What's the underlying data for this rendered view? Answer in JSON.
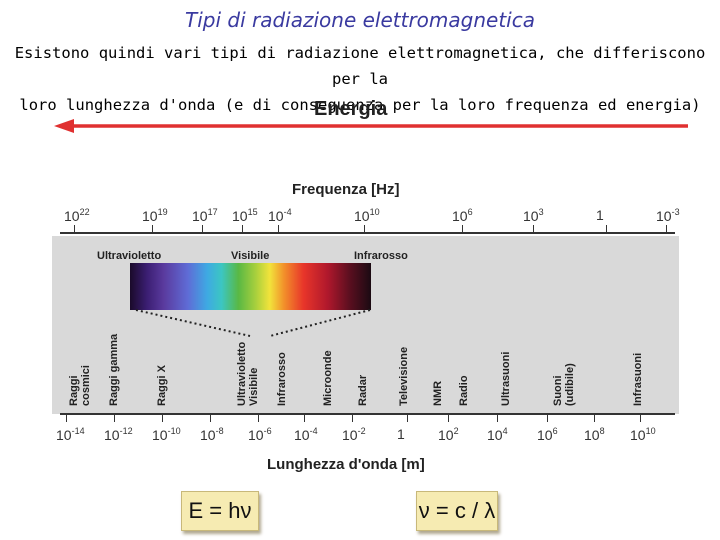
{
  "title": "Tipi di radiazione elettromagnetica",
  "subtitle_line1": "Esistono quindi vari tipi di radiazione elettromagnetica, che differiscono per la",
  "subtitle_line2": "loro lunghezza d'onda (e di conseguenza per la loro frequenza ed energia)",
  "energy_label": "Energia",
  "arrow_color": "#e03030",
  "frequency_axis": {
    "title": "Frequenza [Hz]",
    "ticks": [
      {
        "base": "10",
        "exp": "22"
      },
      {
        "base": "10",
        "exp": "19"
      },
      {
        "base": "10",
        "exp": "17"
      },
      {
        "base": "10",
        "exp": "15"
      },
      {
        "base": "10",
        "exp": "-4"
      },
      {
        "base": "10",
        "exp": "10"
      },
      {
        "base": "10",
        "exp": "6"
      },
      {
        "base": "10",
        "exp": "3"
      },
      {
        "base": "1",
        "exp": ""
      },
      {
        "base": "10",
        "exp": "-3"
      }
    ]
  },
  "wavelength_axis": {
    "title": "Lunghezza d'onda [m]",
    "ticks": [
      {
        "base": "10",
        "exp": "-14"
      },
      {
        "base": "10",
        "exp": "-12"
      },
      {
        "base": "10",
        "exp": "-10"
      },
      {
        "base": "10",
        "exp": "-8"
      },
      {
        "base": "10",
        "exp": "-6"
      },
      {
        "base": "10",
        "exp": "-4"
      },
      {
        "base": "10",
        "exp": "-2"
      },
      {
        "base": "1",
        "exp": ""
      },
      {
        "base": "10",
        "exp": "2"
      },
      {
        "base": "10",
        "exp": "4"
      },
      {
        "base": "10",
        "exp": "6"
      },
      {
        "base": "10",
        "exp": "8"
      },
      {
        "base": "10",
        "exp": "10"
      }
    ]
  },
  "spectrum_labels": {
    "ultraviolet": "Ultravioletto",
    "visible": "Visibile",
    "infrared": "Infrarosso"
  },
  "categories": [
    {
      "line1": "Raggi",
      "line2": "cosmici"
    },
    {
      "line1": "Raggi gamma",
      "line2": ""
    },
    {
      "line1": "Raggi X",
      "line2": ""
    },
    {
      "line1": "Ultravioletto",
      "line2": "Visibile"
    },
    {
      "line1": "Infrarosso",
      "line2": ""
    },
    {
      "line1": "Microonde",
      "line2": ""
    },
    {
      "line1": "Radar",
      "line2": ""
    },
    {
      "line1": "Televisione",
      "line2": ""
    },
    {
      "line1": "NMR",
      "line2": ""
    },
    {
      "line1": "Radio",
      "line2": ""
    },
    {
      "line1": "Ultrasuoni",
      "line2": ""
    },
    {
      "line1": "Suoni",
      "line2": "(udibile)"
    },
    {
      "line1": "Infrasuoni",
      "line2": ""
    }
  ],
  "formulas": {
    "energy": "E = hν",
    "frequency": "ν = c / λ"
  }
}
